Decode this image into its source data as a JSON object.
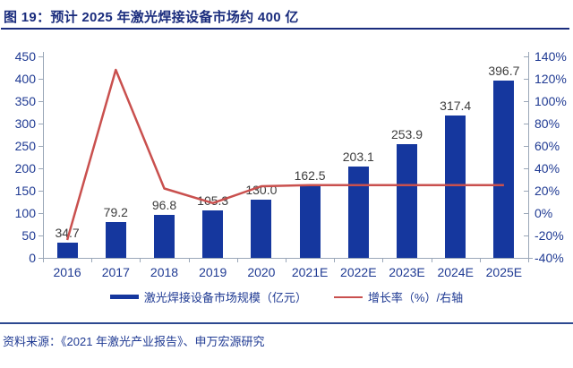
{
  "header": {
    "title": "图 19：预计 2025 年激光焊接设备市场约 400 亿"
  },
  "footer": {
    "source": "资料来源：《2021 年激光产业报告》、申万宏源研究"
  },
  "legend": [
    {
      "label": "激光焊接设备市场规模（亿元）",
      "type": "bar",
      "color": "#15379e"
    },
    {
      "label": "增长率（%）/右轴",
      "type": "line",
      "color": "#c9504e"
    }
  ],
  "colors": {
    "bar": "#15379e",
    "line": "#c9504e",
    "title_text": "#1a2c7d",
    "axis_text": "#1f3a93",
    "value_label_text": "#3d3d3d",
    "axis_line": "#9aa7b8",
    "divider": "#2c4890"
  },
  "chart_data": {
    "type": "bar",
    "title": "预计 2025 年激光焊接设备市场约 400 亿",
    "categories": [
      "2016",
      "2017",
      "2018",
      "2019",
      "2020",
      "2021E",
      "2022E",
      "2023E",
      "2024E",
      "2025E"
    ],
    "series": [
      {
        "name": "激光焊接设备市场规模（亿元）",
        "type": "bar",
        "axis": "left",
        "color": "#15379e",
        "values": [
          34.7,
          79.2,
          96.8,
          105.3,
          130.0,
          162.5,
          203.1,
          253.9,
          317.4,
          396.7
        ]
      },
      {
        "name": "增长率（%）/右轴",
        "type": "line",
        "axis": "right",
        "color": "#c9504e",
        "unit": "%",
        "estimated_from_plot": true,
        "values": [
          -24,
          128,
          22,
          9,
          24,
          25,
          25,
          25,
          25,
          25
        ]
      }
    ],
    "left_axis": {
      "min": 0,
      "max": 450,
      "step": 50
    },
    "right_axis": {
      "min": -40,
      "max": 140,
      "step": 20,
      "suffix": "%"
    },
    "grid": false,
    "legend_position": "bottom"
  }
}
